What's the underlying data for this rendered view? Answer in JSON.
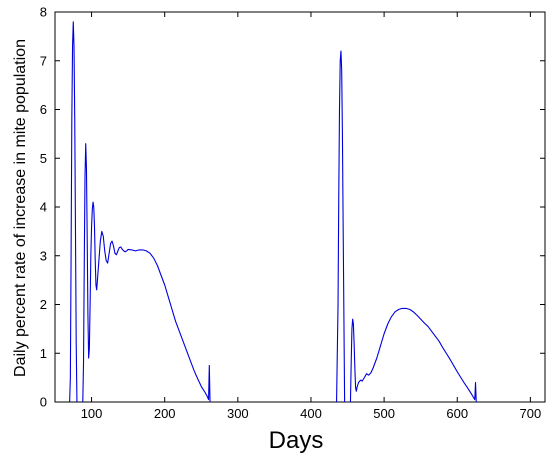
{
  "chart_data": {
    "type": "line",
    "title": "",
    "xlabel": "Days",
    "ylabel": "Daily percent rate of increase in mite population",
    "xlim": [
      50,
      720
    ],
    "ylim": [
      0,
      8
    ],
    "xticks": [
      100,
      200,
      300,
      400,
      500,
      600,
      700
    ],
    "yticks": [
      0,
      1,
      2,
      3,
      4,
      5,
      6,
      7,
      8
    ],
    "grid": false,
    "colors": {
      "line": "#0000dd",
      "axes": "#000000"
    },
    "segments": [
      [
        [
          70,
          0
        ],
        [
          71,
          0.5
        ],
        [
          72,
          3.0
        ],
        [
          73,
          5.8
        ],
        [
          74,
          7.3
        ],
        [
          75,
          7.8
        ],
        [
          76,
          7.3
        ],
        [
          77,
          5.8
        ],
        [
          78,
          3.5
        ],
        [
          79,
          1.2
        ],
        [
          80,
          0
        ]
      ],
      [
        [
          88,
          0
        ],
        [
          89,
          0.8
        ],
        [
          90,
          2.8
        ],
        [
          91,
          4.6
        ],
        [
          92,
          5.3
        ],
        [
          93,
          4.8
        ],
        [
          94,
          3.4
        ],
        [
          95,
          1.8
        ],
        [
          96,
          0.9
        ],
        [
          97,
          1.1
        ],
        [
          98,
          2.0
        ],
        [
          99,
          3.0
        ],
        [
          100,
          3.6
        ],
        [
          101,
          3.95
        ],
        [
          102,
          4.1
        ],
        [
          103,
          4.0
        ],
        [
          104,
          3.6
        ],
        [
          105,
          2.9
        ],
        [
          106,
          2.4
        ],
        [
          107,
          2.3
        ],
        [
          108,
          2.5
        ],
        [
          110,
          2.9
        ],
        [
          112,
          3.3
        ],
        [
          114,
          3.5
        ],
        [
          116,
          3.4
        ],
        [
          118,
          3.1
        ],
        [
          120,
          2.9
        ],
        [
          122,
          2.85
        ],
        [
          124,
          3.05
        ],
        [
          126,
          3.25
        ],
        [
          128,
          3.3
        ],
        [
          130,
          3.2
        ],
        [
          132,
          3.05
        ],
        [
          134,
          3.02
        ],
        [
          136,
          3.1
        ],
        [
          138,
          3.17
        ],
        [
          140,
          3.18
        ],
        [
          142,
          3.13
        ],
        [
          144,
          3.1
        ],
        [
          146,
          3.08
        ],
        [
          148,
          3.1
        ],
        [
          150,
          3.13
        ],
        [
          155,
          3.12
        ],
        [
          160,
          3.1
        ],
        [
          165,
          3.12
        ],
        [
          170,
          3.12
        ],
        [
          175,
          3.1
        ],
        [
          180,
          3.05
        ],
        [
          185,
          2.95
        ],
        [
          190,
          2.8
        ],
        [
          195,
          2.6
        ],
        [
          200,
          2.4
        ],
        [
          205,
          2.15
        ],
        [
          210,
          1.9
        ],
        [
          215,
          1.65
        ],
        [
          220,
          1.45
        ],
        [
          225,
          1.25
        ],
        [
          230,
          1.05
        ],
        [
          235,
          0.85
        ],
        [
          240,
          0.65
        ],
        [
          245,
          0.48
        ],
        [
          250,
          0.32
        ],
        [
          255,
          0.2
        ],
        [
          258,
          0.12
        ],
        [
          260,
          0.05
        ],
        [
          261,
          0.75
        ],
        [
          262,
          0
        ]
      ],
      [
        [
          435,
          0
        ],
        [
          437,
          2.0
        ],
        [
          438,
          4.2
        ],
        [
          439,
          6.0
        ],
        [
          440,
          7.0
        ],
        [
          441,
          7.2
        ],
        [
          442,
          6.8
        ],
        [
          443,
          5.5
        ],
        [
          444,
          3.6
        ],
        [
          445,
          1.8
        ],
        [
          446,
          0
        ]
      ],
      [
        [
          454,
          0
        ],
        [
          455,
          0.8
        ],
        [
          456,
          1.5
        ],
        [
          457,
          1.7
        ],
        [
          458,
          1.6
        ],
        [
          459,
          1.2
        ],
        [
          460,
          0.7
        ],
        [
          461,
          0.3
        ],
        [
          462,
          0.22
        ],
        [
          463,
          0.3
        ],
        [
          465,
          0.4
        ],
        [
          468,
          0.45
        ],
        [
          470,
          0.43
        ],
        [
          473,
          0.5
        ],
        [
          476,
          0.58
        ],
        [
          479,
          0.55
        ],
        [
          482,
          0.6
        ],
        [
          485,
          0.7
        ],
        [
          490,
          0.9
        ],
        [
          495,
          1.15
        ],
        [
          500,
          1.4
        ],
        [
          505,
          1.6
        ],
        [
          510,
          1.75
        ],
        [
          515,
          1.85
        ],
        [
          520,
          1.9
        ],
        [
          525,
          1.92
        ],
        [
          530,
          1.92
        ],
        [
          535,
          1.9
        ],
        [
          540,
          1.85
        ],
        [
          545,
          1.78
        ],
        [
          550,
          1.7
        ],
        [
          555,
          1.62
        ],
        [
          560,
          1.55
        ],
        [
          565,
          1.45
        ],
        [
          570,
          1.35
        ],
        [
          575,
          1.25
        ],
        [
          580,
          1.12
        ],
        [
          585,
          1.0
        ],
        [
          590,
          0.88
        ],
        [
          595,
          0.75
        ],
        [
          600,
          0.62
        ],
        [
          605,
          0.5
        ],
        [
          610,
          0.38
        ],
        [
          615,
          0.27
        ],
        [
          620,
          0.15
        ],
        [
          622,
          0.1
        ],
        [
          624,
          0.05
        ],
        [
          625,
          0.4
        ],
        [
          626,
          0
        ]
      ]
    ]
  }
}
